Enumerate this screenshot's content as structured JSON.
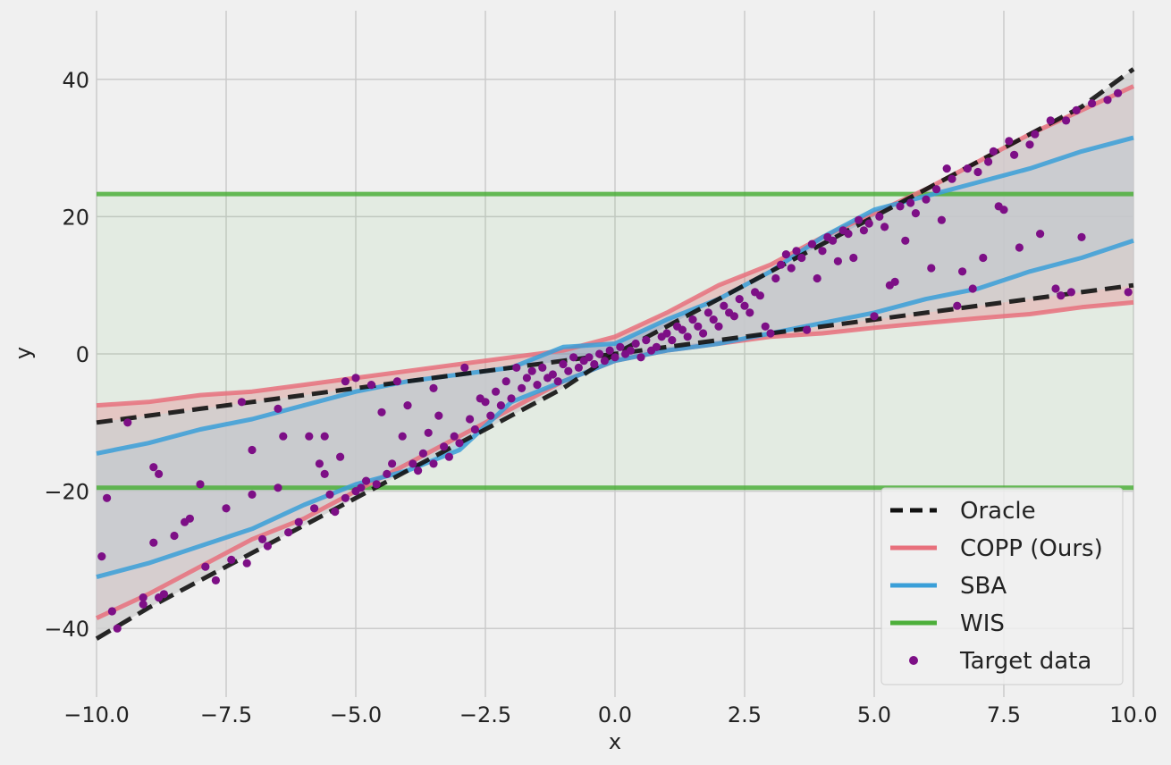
{
  "chart_data": {
    "type": "line",
    "xlabel": "x",
    "ylabel": "y",
    "xlim": [
      -10,
      10
    ],
    "ylim": [
      -50,
      50
    ],
    "xticks": [
      -10,
      -7.5,
      -5,
      -2.5,
      0,
      2.5,
      5,
      7.5,
      10
    ],
    "xtick_labels": [
      "−10.0",
      "−7.5",
      "−5.0",
      "−2.5",
      "0.0",
      "2.5",
      "5.0",
      "7.5",
      "10.0"
    ],
    "yticks": [
      -40,
      -20,
      0,
      20,
      40
    ],
    "ytick_labels": [
      "−40",
      "−20",
      "0",
      "20",
      "40"
    ],
    "grid": true,
    "legend_position": "bottom-right",
    "colors": {
      "oracle": "#111111",
      "copp": "#e8707c",
      "sba": "#3a9fd8",
      "wis": "#4caf3a",
      "target": "#7d0f86",
      "background": "#f0f0f0",
      "grid": "#cbcbcb"
    },
    "legend": [
      {
        "key": "oracle",
        "label": "Oracle"
      },
      {
        "key": "copp",
        "label": "COPP (Ours)"
      },
      {
        "key": "sba",
        "label": "SBA"
      },
      {
        "key": "wis",
        "label": "WIS"
      },
      {
        "key": "target",
        "label": "Target data"
      }
    ],
    "series": [
      {
        "key": "oracle",
        "name": "Oracle",
        "style": "dashed",
        "upper": [
          [
            -10,
            -10
          ],
          [
            -9,
            -9
          ],
          [
            -8,
            -8
          ],
          [
            -7,
            -7
          ],
          [
            -6,
            -6
          ],
          [
            -5,
            -5
          ],
          [
            -4,
            -4
          ],
          [
            -3,
            -3
          ],
          [
            -2,
            -2
          ],
          [
            -1,
            -1
          ],
          [
            0,
            0
          ],
          [
            1,
            4
          ],
          [
            2,
            8
          ],
          [
            3,
            12
          ],
          [
            4,
            16
          ],
          [
            5,
            20
          ],
          [
            6,
            24
          ],
          [
            7,
            28
          ],
          [
            8,
            32
          ],
          [
            9,
            36
          ],
          [
            10,
            41.5
          ]
        ],
        "lower": [
          [
            -10,
            -41.5
          ],
          [
            -9,
            -37
          ],
          [
            -8,
            -33
          ],
          [
            -7,
            -29
          ],
          [
            -6,
            -25
          ],
          [
            -5,
            -21
          ],
          [
            -4,
            -17
          ],
          [
            -3,
            -13
          ],
          [
            -2,
            -9
          ],
          [
            -1,
            -5
          ],
          [
            0,
            0
          ],
          [
            1,
            1
          ],
          [
            2,
            2
          ],
          [
            3,
            3
          ],
          [
            4,
            4
          ],
          [
            5,
            5
          ],
          [
            6,
            6
          ],
          [
            7,
            7
          ],
          [
            8,
            8
          ],
          [
            9,
            9
          ],
          [
            10,
            10
          ]
        ]
      },
      {
        "key": "copp",
        "name": "COPP (Ours)",
        "upper": [
          [
            -10,
            -7.5
          ],
          [
            -9,
            -7
          ],
          [
            -8,
            -6
          ],
          [
            -7,
            -5.5
          ],
          [
            -6,
            -4.5
          ],
          [
            -5,
            -3.5
          ],
          [
            -4,
            -2.5
          ],
          [
            -3,
            -1.5
          ],
          [
            -2,
            -0.5
          ],
          [
            -1,
            0.5
          ],
          [
            0,
            2.5
          ],
          [
            1,
            6
          ],
          [
            2,
            10
          ],
          [
            3,
            13
          ],
          [
            4,
            17
          ],
          [
            5,
            20.5
          ],
          [
            6,
            24
          ],
          [
            7,
            28
          ],
          [
            8,
            32
          ],
          [
            9,
            35.5
          ],
          [
            10,
            39
          ]
        ],
        "lower": [
          [
            -10,
            -38.5
          ],
          [
            -9,
            -35
          ],
          [
            -8,
            -31
          ],
          [
            -7,
            -27
          ],
          [
            -6,
            -24
          ],
          [
            -5,
            -20
          ],
          [
            -4,
            -16
          ],
          [
            -3,
            -12
          ],
          [
            -2,
            -8
          ],
          [
            -1,
            -4
          ],
          [
            0,
            -1
          ],
          [
            1,
            0.5
          ],
          [
            2,
            1.5
          ],
          [
            3,
            2.5
          ],
          [
            4,
            3
          ],
          [
            5,
            3.8
          ],
          [
            6,
            4.5
          ],
          [
            7,
            5.2
          ],
          [
            8,
            5.8
          ],
          [
            9,
            6.8
          ],
          [
            10,
            7.5
          ]
        ]
      },
      {
        "key": "sba",
        "name": "SBA",
        "upper": [
          [
            -10,
            -14.5
          ],
          [
            -9,
            -13
          ],
          [
            -8,
            -11
          ],
          [
            -7,
            -9.5
          ],
          [
            -6,
            -7.5
          ],
          [
            -5,
            -5.5
          ],
          [
            -4,
            -4
          ],
          [
            -3,
            -3
          ],
          [
            -2,
            -2
          ],
          [
            -1,
            1
          ],
          [
            0,
            1.5
          ],
          [
            1,
            5
          ],
          [
            2,
            8
          ],
          [
            3,
            12
          ],
          [
            4,
            17
          ],
          [
            5,
            21
          ],
          [
            6,
            23
          ],
          [
            7,
            25
          ],
          [
            8,
            27
          ],
          [
            9,
            29.5
          ],
          [
            10,
            31.5
          ]
        ],
        "lower": [
          [
            -10,
            -32.5
          ],
          [
            -9,
            -30.5
          ],
          [
            -8,
            -28
          ],
          [
            -7,
            -25.5
          ],
          [
            -6,
            -22
          ],
          [
            -5,
            -19
          ],
          [
            -4,
            -17
          ],
          [
            -3,
            -14
          ],
          [
            -2,
            -7
          ],
          [
            -1,
            -4
          ],
          [
            0,
            -1
          ],
          [
            1,
            0.5
          ],
          [
            2,
            1.5
          ],
          [
            3,
            3
          ],
          [
            4,
            4.5
          ],
          [
            5,
            6
          ],
          [
            6,
            8
          ],
          [
            7,
            9.5
          ],
          [
            8,
            12
          ],
          [
            9,
            14
          ],
          [
            10,
            16.5
          ]
        ]
      },
      {
        "key": "wis",
        "name": "WIS",
        "upper": [
          [
            -10,
            23.3
          ],
          [
            10,
            23.3
          ]
        ],
        "lower": [
          [
            -10,
            -19.5
          ],
          [
            10,
            -19.5
          ]
        ]
      }
    ],
    "scatter": {
      "key": "target",
      "name": "Target data",
      "points": [
        [
          -9.9,
          -29.5
        ],
        [
          -9.8,
          -21
        ],
        [
          -9.7,
          -37.5
        ],
        [
          -9.6,
          -40
        ],
        [
          -9.4,
          -10
        ],
        [
          -9.1,
          -35.5
        ],
        [
          -9.1,
          -36.5
        ],
        [
          -8.9,
          -16.5
        ],
        [
          -8.8,
          -17.5
        ],
        [
          -8.9,
          -27.5
        ],
        [
          -8.8,
          -35.5
        ],
        [
          -8.7,
          -35
        ],
        [
          -8.5,
          -26.5
        ],
        [
          -8.3,
          -24.5
        ],
        [
          -8.2,
          -24
        ],
        [
          -8.0,
          -19
        ],
        [
          -7.9,
          -31
        ],
        [
          -7.7,
          -33
        ],
        [
          -7.5,
          -22.5
        ],
        [
          -7.4,
          -30
        ],
        [
          -7.2,
          -7
        ],
        [
          -7.1,
          -30.5
        ],
        [
          -7.0,
          -20.5
        ],
        [
          -7.0,
          -14
        ],
        [
          -6.8,
          -27
        ],
        [
          -6.7,
          -28
        ],
        [
          -6.5,
          -8
        ],
        [
          -6.5,
          -19.5
        ],
        [
          -6.4,
          -12
        ],
        [
          -6.3,
          -26
        ],
        [
          -6.1,
          -24.5
        ],
        [
          -5.9,
          -12
        ],
        [
          -5.8,
          -22.5
        ],
        [
          -5.7,
          -16
        ],
        [
          -5.6,
          -17.5
        ],
        [
          -5.6,
          -12
        ],
        [
          -5.5,
          -20.5
        ],
        [
          -5.4,
          -23
        ],
        [
          -5.3,
          -15
        ],
        [
          -5.2,
          -4
        ],
        [
          -5.2,
          -21
        ],
        [
          -5.0,
          -3.5
        ],
        [
          -5.0,
          -20
        ],
        [
          -4.9,
          -19.5
        ],
        [
          -4.8,
          -18.5
        ],
        [
          -4.7,
          -4.5
        ],
        [
          -4.6,
          -19
        ],
        [
          -4.5,
          -8.5
        ],
        [
          -4.4,
          -17.5
        ],
        [
          -4.3,
          -16
        ],
        [
          -4.2,
          -4
        ],
        [
          -4.1,
          -12
        ],
        [
          -4.0,
          -7.5
        ],
        [
          -3.9,
          -16
        ],
        [
          -3.8,
          -17
        ],
        [
          -3.7,
          -14.5
        ],
        [
          -3.6,
          -11.5
        ],
        [
          -3.5,
          -5
        ],
        [
          -3.5,
          -16
        ],
        [
          -3.4,
          -9
        ],
        [
          -3.3,
          -13.5
        ],
        [
          -3.2,
          -15
        ],
        [
          -3.1,
          -12
        ],
        [
          -3.0,
          -13
        ],
        [
          -2.9,
          -2
        ],
        [
          -2.8,
          -9.5
        ],
        [
          -2.7,
          -11
        ],
        [
          -2.6,
          -6.5
        ],
        [
          -2.5,
          -7
        ],
        [
          -2.4,
          -9
        ],
        [
          -2.3,
          -5.5
        ],
        [
          -2.2,
          -7.5
        ],
        [
          -2.1,
          -4
        ],
        [
          -2.0,
          -6.5
        ],
        [
          -1.9,
          -2
        ],
        [
          -1.8,
          -5
        ],
        [
          -1.7,
          -3.5
        ],
        [
          -1.6,
          -2.5
        ],
        [
          -1.5,
          -4.5
        ],
        [
          -1.4,
          -2
        ],
        [
          -1.3,
          -3.5
        ],
        [
          -1.2,
          -3
        ],
        [
          -1.1,
          -4
        ],
        [
          -1.0,
          -1.5
        ],
        [
          -0.9,
          -2.5
        ],
        [
          -0.8,
          -0.5
        ],
        [
          -0.7,
          -2
        ],
        [
          -0.6,
          -1
        ],
        [
          -0.5,
          -0.5
        ],
        [
          -0.4,
          -1.5
        ],
        [
          -0.3,
          0
        ],
        [
          -0.2,
          -1
        ],
        [
          -0.1,
          0.5
        ],
        [
          0,
          -0.5
        ],
        [
          0.1,
          1
        ],
        [
          0.2,
          0
        ],
        [
          0.3,
          0.5
        ],
        [
          0.4,
          1.5
        ],
        [
          0.5,
          -0.5
        ],
        [
          0.6,
          2
        ],
        [
          0.7,
          0.5
        ],
        [
          0.8,
          1
        ],
        [
          0.9,
          2.5
        ],
        [
          1.0,
          3
        ],
        [
          1.1,
          2
        ],
        [
          1.2,
          4
        ],
        [
          1.3,
          3.5
        ],
        [
          1.4,
          2.5
        ],
        [
          1.5,
          5
        ],
        [
          1.6,
          4
        ],
        [
          1.7,
          3
        ],
        [
          1.8,
          6
        ],
        [
          1.9,
          5
        ],
        [
          2.0,
          4
        ],
        [
          2.1,
          7
        ],
        [
          2.2,
          6
        ],
        [
          2.3,
          5.5
        ],
        [
          2.4,
          8
        ],
        [
          2.5,
          7
        ],
        [
          2.6,
          6
        ],
        [
          2.7,
          9
        ],
        [
          2.8,
          8.5
        ],
        [
          2.9,
          4
        ],
        [
          3.0,
          3
        ],
        [
          3.1,
          11
        ],
        [
          3.2,
          13
        ],
        [
          3.3,
          14.5
        ],
        [
          3.4,
          12.5
        ],
        [
          3.5,
          15
        ],
        [
          3.6,
          14
        ],
        [
          3.7,
          3.5
        ],
        [
          3.8,
          16
        ],
        [
          3.9,
          11
        ],
        [
          4.0,
          15
        ],
        [
          4.1,
          17
        ],
        [
          4.2,
          16.5
        ],
        [
          4.3,
          13.5
        ],
        [
          4.4,
          18
        ],
        [
          4.5,
          17.5
        ],
        [
          4.6,
          14
        ],
        [
          4.7,
          19.5
        ],
        [
          4.8,
          18
        ],
        [
          4.9,
          19
        ],
        [
          5.0,
          5.5
        ],
        [
          5.1,
          20
        ],
        [
          5.2,
          18.5
        ],
        [
          5.3,
          10
        ],
        [
          5.4,
          10.5
        ],
        [
          5.5,
          21.5
        ],
        [
          5.6,
          16.5
        ],
        [
          5.7,
          22
        ],
        [
          5.8,
          20.5
        ],
        [
          6.0,
          22.5
        ],
        [
          6.1,
          12.5
        ],
        [
          6.2,
          24
        ],
        [
          6.3,
          19.5
        ],
        [
          6.4,
          27
        ],
        [
          6.5,
          25.5
        ],
        [
          6.6,
          7
        ],
        [
          6.7,
          12
        ],
        [
          6.8,
          27
        ],
        [
          6.9,
          9.5
        ],
        [
          7.0,
          26.5
        ],
        [
          7.1,
          14
        ],
        [
          7.2,
          28
        ],
        [
          7.3,
          29.5
        ],
        [
          7.4,
          21.5
        ],
        [
          7.5,
          21
        ],
        [
          7.6,
          31
        ],
        [
          7.7,
          29
        ],
        [
          7.8,
          15.5
        ],
        [
          8.0,
          30.5
        ],
        [
          8.1,
          32
        ],
        [
          8.2,
          17.5
        ],
        [
          8.4,
          34
        ],
        [
          8.5,
          9.5
        ],
        [
          8.6,
          8.5
        ],
        [
          8.7,
          34
        ],
        [
          8.8,
          9
        ],
        [
          8.9,
          35.5
        ],
        [
          9.0,
          17
        ],
        [
          9.2,
          36.5
        ],
        [
          9.5,
          37
        ],
        [
          9.7,
          38
        ],
        [
          9.9,
          9
        ]
      ]
    }
  }
}
